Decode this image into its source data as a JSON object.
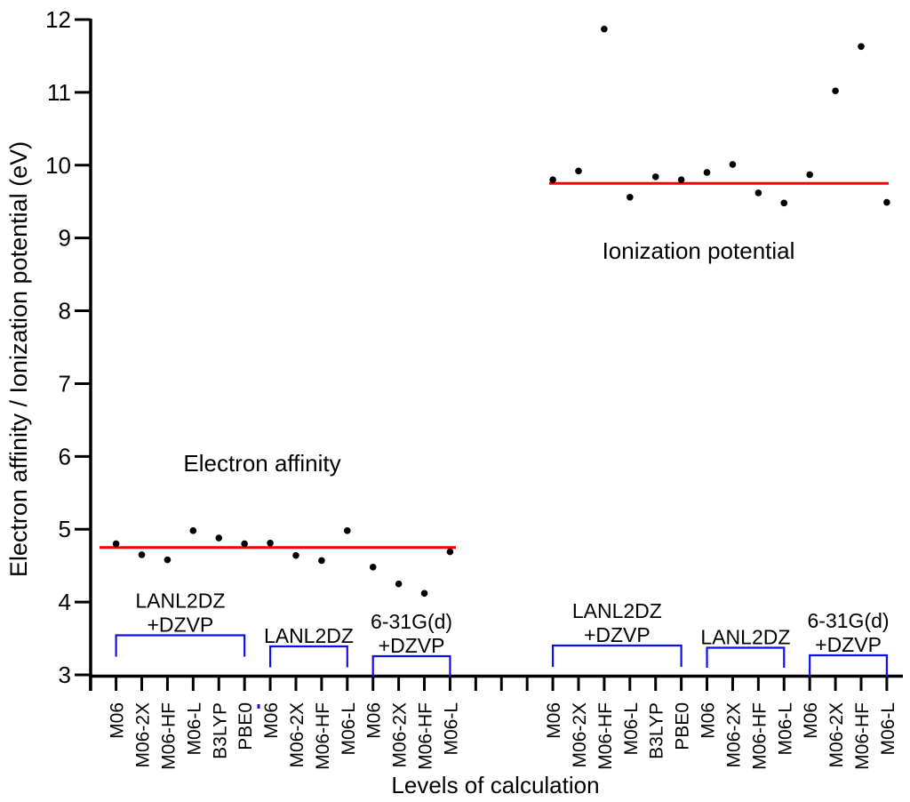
{
  "chart_data": {
    "type": "scatter",
    "xlabel": "Levels of calculation",
    "ylabel": "Electron affinity / Ionization potential (eV)",
    "ylim": [
      3,
      12
    ],
    "yticks": [
      3,
      4,
      5,
      6,
      7,
      8,
      9,
      10,
      11,
      12
    ],
    "grid": false,
    "legend": "none",
    "colors": {
      "points": "#000000",
      "ref_line": "#ff0000",
      "brackets": "#0f0fee",
      "axis": "#000000"
    },
    "groups": [
      {
        "id": "electron-affinity",
        "annotation": "Electron affinity",
        "ref_line_value": 4.75,
        "categories": [
          "M06",
          "M06-2X",
          "M06-HF",
          "M06-L",
          "B3LYP",
          "PBE0",
          "M06",
          "M06-2X",
          "M06-HF",
          "M06-L",
          "M06",
          "M06-2X",
          "M06-HF",
          "M06-L"
        ],
        "values": [
          4.8,
          4.65,
          4.58,
          4.98,
          4.88,
          4.8,
          4.81,
          4.64,
          4.57,
          4.98,
          4.48,
          4.25,
          4.12,
          4.69
        ],
        "brackets": [
          {
            "label_lines": [
              "LANL2DZ",
              "+DZVP"
            ],
            "from_index": 0,
            "to_index": 5
          },
          {
            "label_lines": [
              "LANL2DZ"
            ],
            "from_index": 6,
            "to_index": 9
          },
          {
            "label_lines": [
              "6-31G(d)",
              "+DZVP"
            ],
            "from_index": 10,
            "to_index": 13
          }
        ]
      },
      {
        "id": "ionization-potential",
        "annotation": "Ionization potential",
        "ref_line_value": 9.75,
        "categories": [
          "M06",
          "M06-2X",
          "M06-HF",
          "M06-L",
          "B3LYP",
          "PBE0",
          "M06",
          "M06-2X",
          "M06-HF",
          "M06-L",
          "M06",
          "M06-2X",
          "M06-HF",
          "M06-L"
        ],
        "values": [
          9.8,
          9.92,
          11.87,
          9.56,
          9.84,
          9.8,
          9.9,
          10.01,
          9.62,
          9.48,
          9.87,
          11.02,
          11.63,
          9.49
        ],
        "brackets": [
          {
            "label_lines": [
              "LANL2DZ",
              "+DZVP"
            ],
            "from_index": 0,
            "to_index": 5
          },
          {
            "label_lines": [
              "LANL2DZ"
            ],
            "from_index": 6,
            "to_index": 9
          },
          {
            "label_lines": [
              "6-31G(d)",
              "+DZVP"
            ],
            "from_index": 10,
            "to_index": 13
          }
        ]
      }
    ]
  }
}
